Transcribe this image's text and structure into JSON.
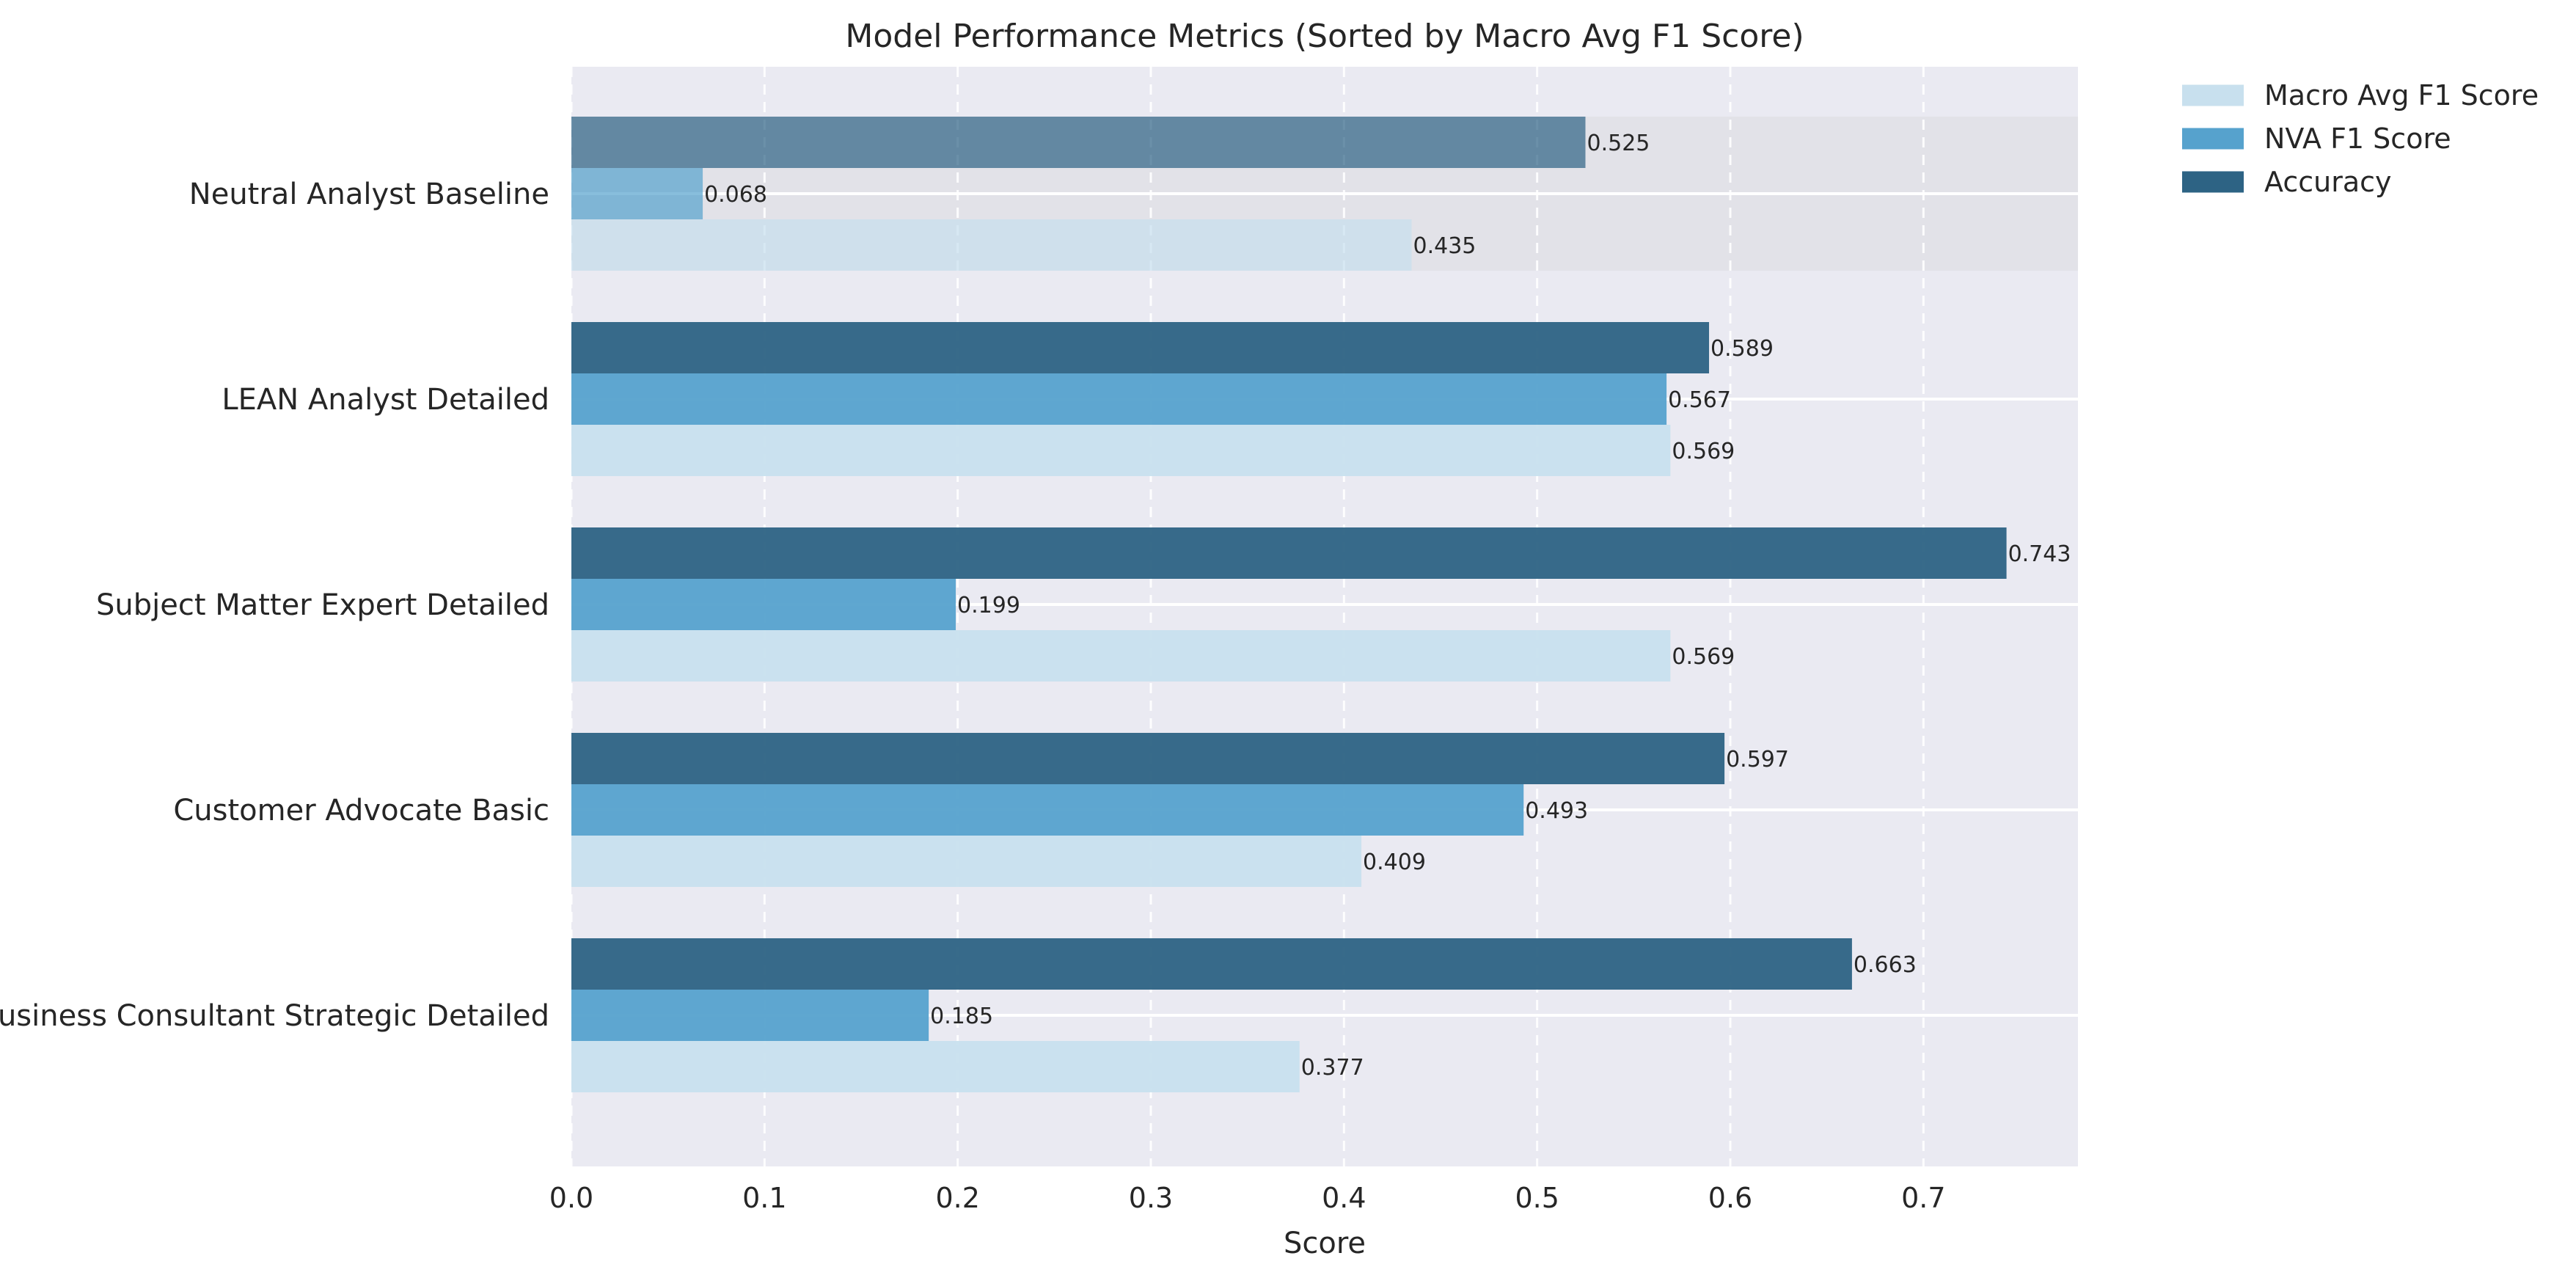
{
  "chart_data": {
    "type": "bar",
    "orientation": "horizontal",
    "title": "Model Performance Metrics (Sorted by Macro Avg F1 Score)",
    "xlabel": "Score",
    "ylabel": "",
    "xlim": [
      0,
      0.78
    ],
    "xticks": [
      0.0,
      0.1,
      0.2,
      0.3,
      0.4,
      0.5,
      0.6,
      0.7
    ],
    "xtick_labels": [
      "0.0",
      "0.1",
      "0.2",
      "0.3",
      "0.4",
      "0.5",
      "0.6",
      "0.7"
    ],
    "grid": true,
    "grid_axis": "x",
    "legend_position": "outside-top-right",
    "highlighted_category": "Neutral Analyst Baseline",
    "categories": [
      "Neutral Analyst Baseline",
      "LEAN Analyst Detailed",
      "Subject Matter Expert Detailed",
      "Customer Advocate Basic",
      "Business Consultant Strategic Detailed"
    ],
    "series": [
      {
        "name": "Macro Avg F1 Score",
        "color": "#c8e0ee",
        "values": [
          0.435,
          0.569,
          0.569,
          0.409,
          0.377
        ],
        "labels": [
          "0.435",
          "0.569",
          "0.569",
          "0.409",
          "0.377"
        ]
      },
      {
        "name": "NVA F1 Score",
        "color": "#56a2cd",
        "values": [
          0.068,
          0.567,
          0.199,
          0.493,
          0.185
        ],
        "labels": [
          "0.068",
          "0.567",
          "0.199",
          "0.493",
          "0.185"
        ]
      },
      {
        "name": "Accuracy",
        "color": "#2d6384",
        "values": [
          0.525,
          0.589,
          0.743,
          0.597,
          0.663
        ],
        "labels": [
          "0.525",
          "0.589",
          "0.743",
          "0.597",
          "0.663"
        ]
      }
    ]
  },
  "colors": {
    "plot_background": "#eaeaf2",
    "highlight_band": "#e2e2e8",
    "grid_line": "#ffffff",
    "text": "#262626"
  }
}
